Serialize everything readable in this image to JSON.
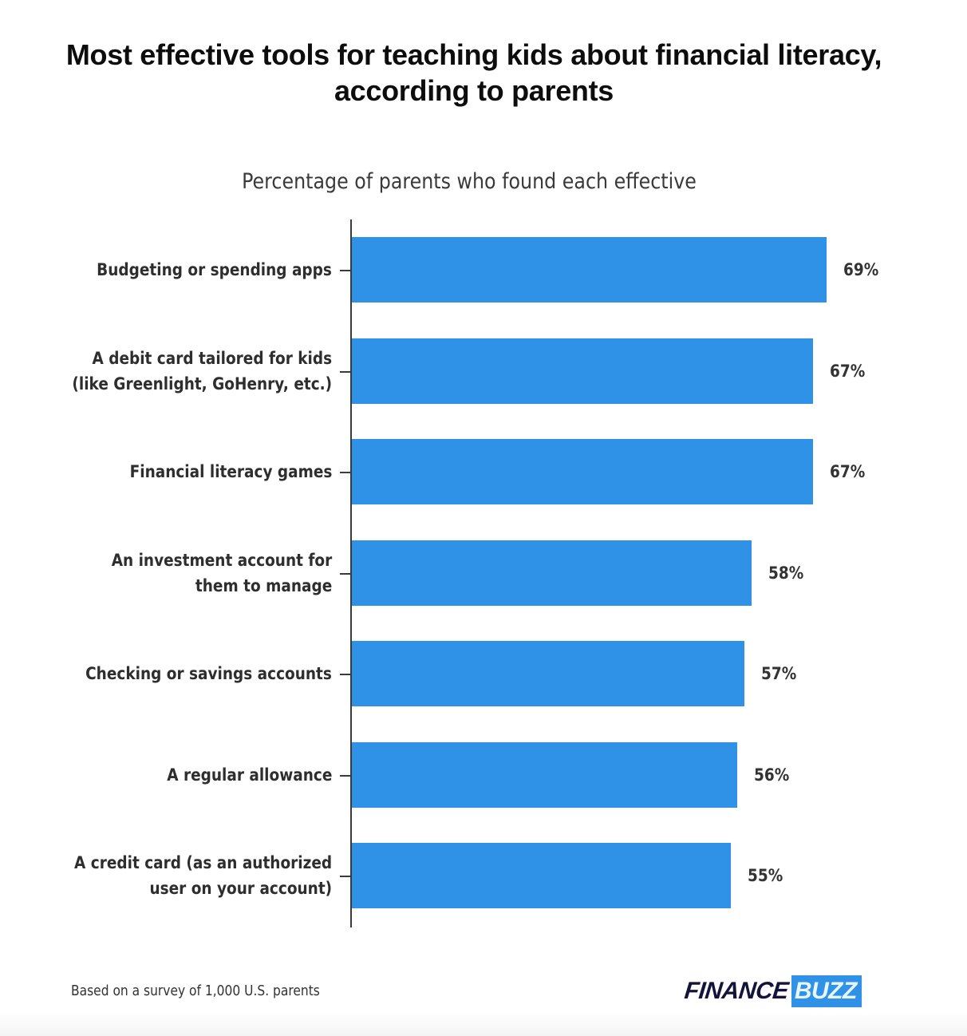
{
  "header": {
    "title_line1": "Most effective tools for teaching kids about financial literacy,",
    "title_line2": "according to parents",
    "subtitle": "Percentage of parents who found each effective"
  },
  "footer": {
    "note": "Based on a survey of 1,000 U.S. parents",
    "logo_part1": "FINANCE",
    "logo_part2": "BUZZ"
  },
  "colors": {
    "bar": "#2f92e6",
    "axis": "#3b3b3b",
    "brand_dark": "#14143a"
  },
  "chart_data": {
    "type": "bar",
    "orientation": "horizontal",
    "title": "Most effective tools for teaching kids about financial literacy, according to parents",
    "subtitle": "Percentage of parents who found each effective",
    "xlabel": "",
    "ylabel": "",
    "grid": false,
    "legend": null,
    "categories": [
      "Budgeting or spending apps",
      "A debit card tailored for kids\n(like Greenlight, GoHenry, etc.)",
      "Financial literacy games",
      "An investment account for\nthem to manage",
      "Checking or savings accounts",
      "A regular allowance",
      "A credit card (as an authorized\nuser on your account)"
    ],
    "values": [
      69,
      67,
      67,
      58,
      57,
      56,
      55
    ],
    "value_labels": [
      "69%",
      "67%",
      "67%",
      "58%",
      "57%",
      "56%",
      "55%"
    ],
    "unit": "%",
    "annotations": [
      "Based on a survey of 1,000 U.S. parents"
    ]
  }
}
